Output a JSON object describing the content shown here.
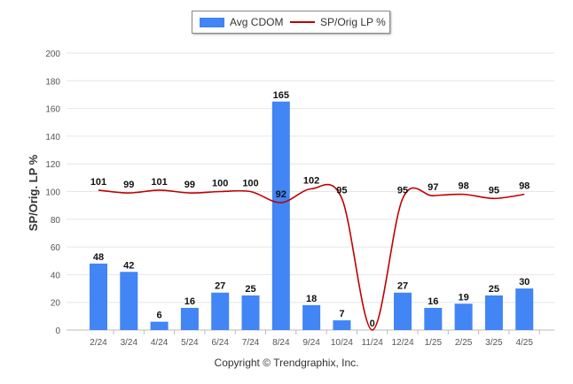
{
  "colors": {
    "bar": "#4285f4",
    "line": "#c00000",
    "grid": "#e6e6e6",
    "axis_text": "#555555",
    "label_text": "#111111"
  },
  "chart_data": {
    "type": "bar",
    "ylabel": "SP/Orig. LP %",
    "ylim": [
      0,
      200
    ],
    "yticks": [
      0,
      20,
      40,
      60,
      80,
      100,
      120,
      140,
      160,
      180,
      200
    ],
    "categories": [
      "2/24",
      "3/24",
      "4/24",
      "5/24",
      "6/24",
      "7/24",
      "8/24",
      "9/24",
      "10/24",
      "11/24",
      "12/24",
      "1/25",
      "2/25",
      "3/25",
      "4/25"
    ],
    "series": [
      {
        "name": "Avg CDOM",
        "type": "bar",
        "values": [
          48,
          42,
          6,
          16,
          27,
          25,
          165,
          18,
          7,
          0,
          27,
          16,
          19,
          25,
          30
        ]
      },
      {
        "name": "SP/Orig LP %",
        "type": "line",
        "values": [
          101,
          99,
          101,
          99,
          100,
          100,
          92,
          102,
          95,
          0,
          95,
          97,
          98,
          95,
          98
        ]
      }
    ],
    "grid": true,
    "legend_position": "top-center"
  },
  "footer": {
    "copyright": "Copyright © Trendgraphix, Inc."
  }
}
